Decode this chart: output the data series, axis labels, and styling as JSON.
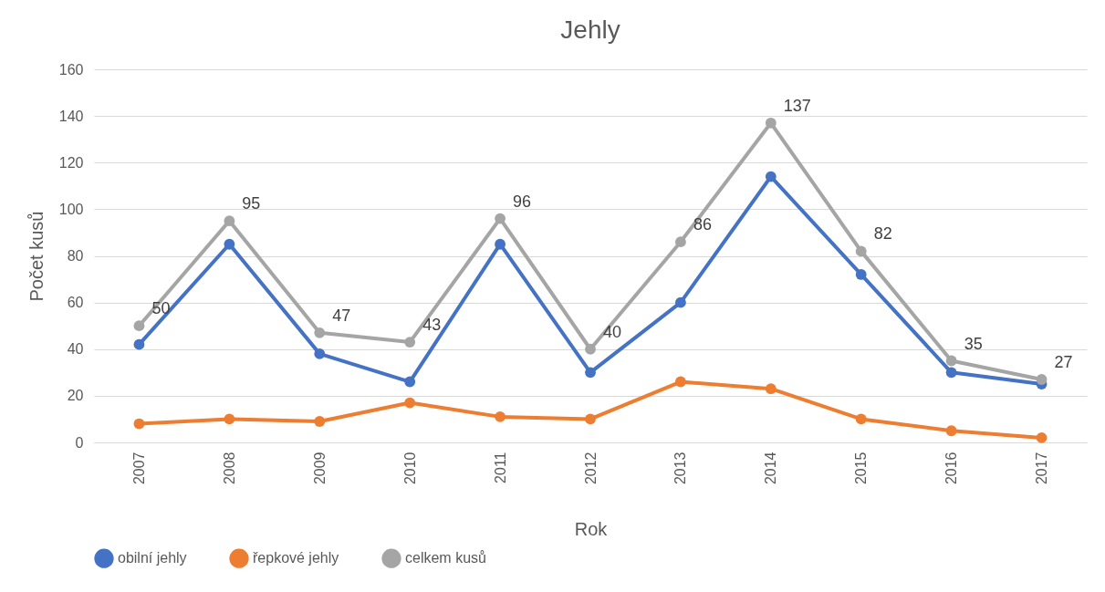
{
  "chart_data": {
    "type": "line",
    "title": "Jehly",
    "xlabel": "Rok",
    "ylabel": "Počet kusů",
    "categories": [
      "2007",
      "2008",
      "2009",
      "2010",
      "2011",
      "2012",
      "2013",
      "2014",
      "2015",
      "2016",
      "2017"
    ],
    "series": [
      {
        "name": "obilní jehly",
        "color": "#4472c4",
        "values": [
          42,
          85,
          38,
          26,
          85,
          30,
          60,
          114,
          72,
          30,
          25
        ]
      },
      {
        "name": "řepkové jehly",
        "color": "#ed7d31",
        "values": [
          8,
          10,
          9,
          17,
          11,
          10,
          26,
          23,
          10,
          5,
          2
        ]
      },
      {
        "name": "celkem kusů",
        "color": "#a5a5a5",
        "values": [
          50,
          95,
          47,
          43,
          96,
          40,
          86,
          137,
          82,
          35,
          27
        ],
        "value_labels": [
          "50",
          "95",
          "47",
          "43",
          "96",
          "40",
          "86",
          "137",
          "82",
          "35",
          "27"
        ]
      }
    ],
    "ylim": [
      0,
      160
    ],
    "yticks": [
      0,
      20,
      40,
      60,
      80,
      100,
      120,
      140,
      160
    ],
    "grid": "y",
    "legend": "bottom",
    "marker": "circle",
    "line_style": "solid"
  }
}
